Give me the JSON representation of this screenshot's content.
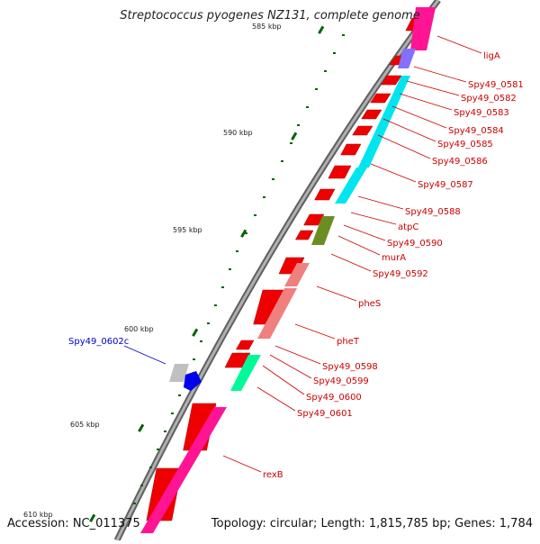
{
  "header": {
    "title": "Streptococcus pyogenes NZ131, complete genome"
  },
  "footer": {
    "accession": "Accession: NC_011375",
    "topology": "Topology: circular; Length: 1,815,785 bp; Genes: 1,784"
  },
  "colors": {
    "backbone": "#8a8a8a",
    "cds_forward": "#ee0000",
    "rrna": "#ff1493",
    "trna": "#00e5ee",
    "tick": "#006400",
    "label": "#cc0000",
    "label_blue": "#0000cc"
  },
  "ticks": [
    {
      "label": "585 kbp"
    },
    {
      "label": "590 kbp"
    },
    {
      "label": "595 kbp"
    },
    {
      "label": "600 kbp"
    },
    {
      "label": "605 kbp"
    },
    {
      "label": "610 kbp"
    }
  ],
  "gene_labels": [
    {
      "text": "ligA",
      "color": "red"
    },
    {
      "text": "Spy49_0581",
      "color": "red"
    },
    {
      "text": "Spy49_0582",
      "color": "red"
    },
    {
      "text": "Spy49_0583",
      "color": "red"
    },
    {
      "text": "Spy49_0584",
      "color": "red"
    },
    {
      "text": "Spy49_0585",
      "color": "red"
    },
    {
      "text": "Spy49_0586",
      "color": "red"
    },
    {
      "text": "Spy49_0587",
      "color": "red"
    },
    {
      "text": "Spy49_0588",
      "color": "red"
    },
    {
      "text": "atpC",
      "color": "red"
    },
    {
      "text": "Spy49_0590",
      "color": "red"
    },
    {
      "text": "murA",
      "color": "red"
    },
    {
      "text": "Spy49_0592",
      "color": "red"
    },
    {
      "text": "pheS",
      "color": "red"
    },
    {
      "text": "pheT",
      "color": "red"
    },
    {
      "text": "Spy49_0598",
      "color": "red"
    },
    {
      "text": "Spy49_0599",
      "color": "red"
    },
    {
      "text": "Spy49_0600",
      "color": "red"
    },
    {
      "text": "Spy49_0601",
      "color": "red"
    },
    {
      "text": "rexB",
      "color": "red"
    },
    {
      "text": "Spy49_0602c",
      "color": "blue"
    }
  ]
}
